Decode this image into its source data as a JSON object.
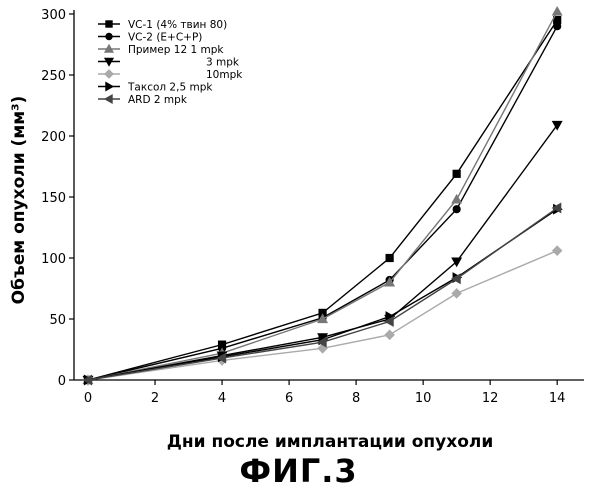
{
  "caption": "ФИГ.3",
  "chart_data": {
    "type": "line",
    "title": "",
    "xlabel": "Дни после имплантации опухоли",
    "ylabel": "Объем опухоли (мм³)",
    "xlim": [
      0,
      14.8
    ],
    "ylim": [
      0,
      300
    ],
    "xticks": [
      0,
      2,
      4,
      6,
      8,
      10,
      12,
      14
    ],
    "yticks": [
      0,
      50,
      100,
      150,
      200,
      250,
      300
    ],
    "x": [
      0,
      4,
      7,
      9,
      11,
      14
    ],
    "legend_position": "top-left",
    "grid": false,
    "series": [
      {
        "name": "VC-1 (4% твин 80)",
        "marker": "square",
        "color": "#000000",
        "values": [
          0,
          29,
          55,
          100,
          169,
          295
        ]
      },
      {
        "name": "VC-2 (E+C+P)",
        "marker": "circle",
        "color": "#000000",
        "values": [
          0,
          26,
          51,
          82,
          140,
          290
        ]
      },
      {
        "name": "Пример 12  1 mpk",
        "marker": "triangle-up",
        "color": "#777777",
        "values": [
          0,
          22,
          50,
          80,
          148,
          302
        ]
      },
      {
        "name": "3 mpk",
        "marker": "triangle-down",
        "color": "#000000",
        "values": [
          0,
          20,
          35,
          50,
          97,
          209
        ]
      },
      {
        "name": "10mpk",
        "marker": "diamond",
        "color": "#aaaaaa",
        "values": [
          0,
          16,
          26,
          37,
          71,
          106
        ]
      },
      {
        "name": "Таксол 2,5 mpk",
        "marker": "triangle-right",
        "color": "#000000",
        "values": [
          0,
          19,
          33,
          52,
          84,
          140
        ]
      },
      {
        "name": "ARD 2 mpk",
        "marker": "triangle-left",
        "color": "#444444",
        "values": [
          0,
          18,
          31,
          48,
          83,
          141
        ]
      }
    ]
  }
}
